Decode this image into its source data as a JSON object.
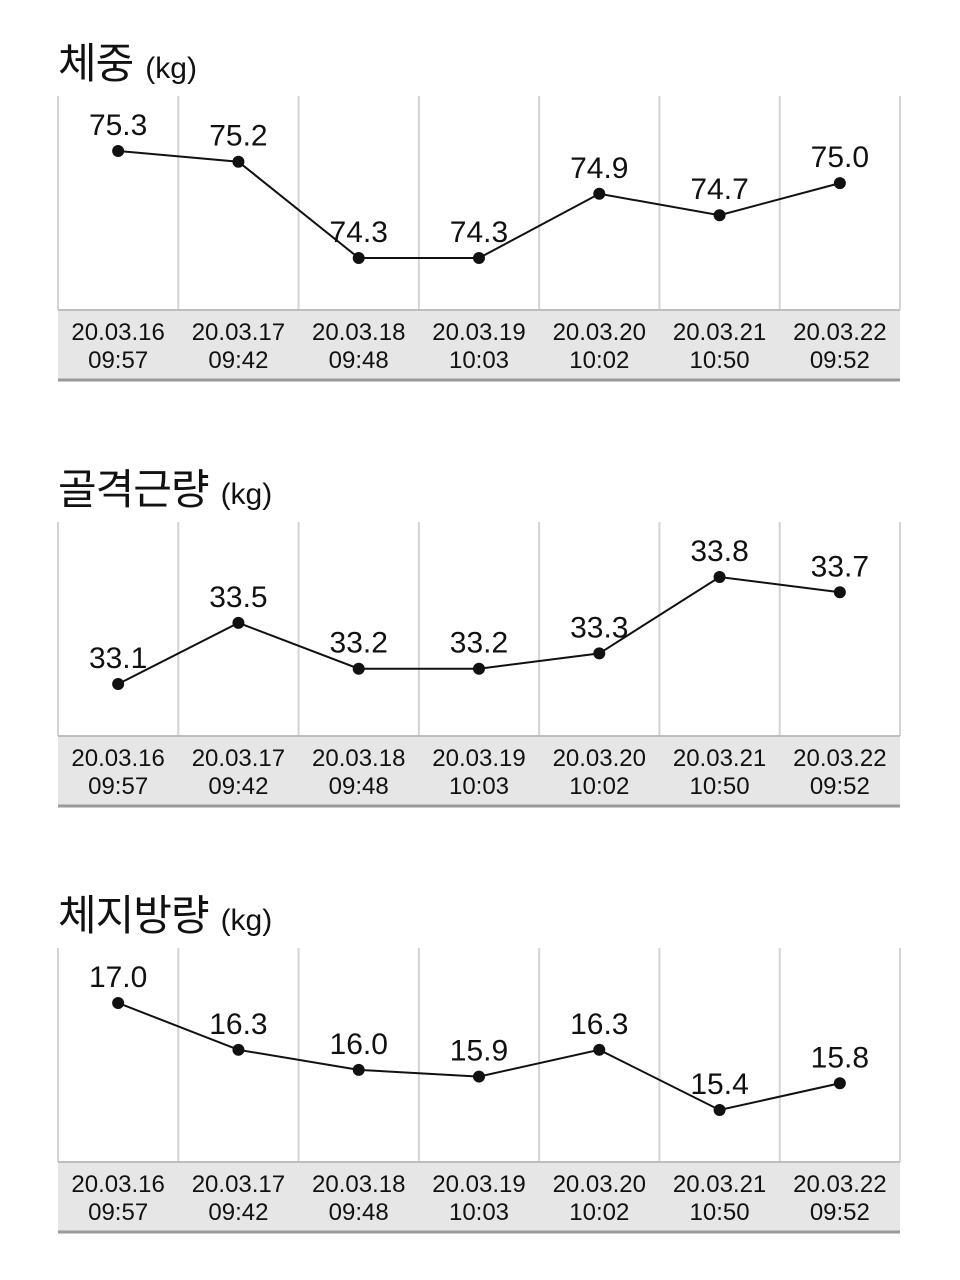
{
  "charts": [
    {
      "title": "체중",
      "unit": "(kg)"
    },
    {
      "title": "골격근량",
      "unit": "(kg)"
    },
    {
      "title": "체지방량",
      "unit": "(kg)"
    }
  ],
  "chart_data": [
    {
      "type": "line",
      "title": "체중 (kg)",
      "categories": [
        [
          "20.03.16",
          "09:57"
        ],
        [
          "20.03.17",
          "09:42"
        ],
        [
          "20.03.18",
          "09:48"
        ],
        [
          "20.03.19",
          "10:03"
        ],
        [
          "20.03.20",
          "10:02"
        ],
        [
          "20.03.21",
          "10:50"
        ],
        [
          "20.03.22",
          "09:52"
        ]
      ],
      "values": [
        75.3,
        75.2,
        74.3,
        74.3,
        74.9,
        74.7,
        75.0
      ],
      "ylim": [
        74.3,
        75.3
      ],
      "grid": "vertical"
    },
    {
      "type": "line",
      "title": "골격근량 (kg)",
      "categories": [
        [
          "20.03.16",
          "09:57"
        ],
        [
          "20.03.17",
          "09:42"
        ],
        [
          "20.03.18",
          "09:48"
        ],
        [
          "20.03.19",
          "10:03"
        ],
        [
          "20.03.20",
          "10:02"
        ],
        [
          "20.03.21",
          "10:50"
        ],
        [
          "20.03.22",
          "09:52"
        ]
      ],
      "values": [
        33.1,
        33.5,
        33.2,
        33.2,
        33.3,
        33.8,
        33.7
      ],
      "ylim": [
        33.1,
        33.8
      ],
      "grid": "vertical"
    },
    {
      "type": "line",
      "title": "체지방량 (kg)",
      "categories": [
        [
          "20.03.16",
          "09:57"
        ],
        [
          "20.03.17",
          "09:42"
        ],
        [
          "20.03.18",
          "09:48"
        ],
        [
          "20.03.19",
          "10:03"
        ],
        [
          "20.03.20",
          "10:02"
        ],
        [
          "20.03.21",
          "10:50"
        ],
        [
          "20.03.22",
          "09:52"
        ]
      ],
      "values": [
        17.0,
        16.3,
        16.0,
        15.9,
        16.3,
        15.4,
        15.8
      ],
      "ylim": [
        15.4,
        17.0
      ],
      "grid": "vertical"
    }
  ]
}
